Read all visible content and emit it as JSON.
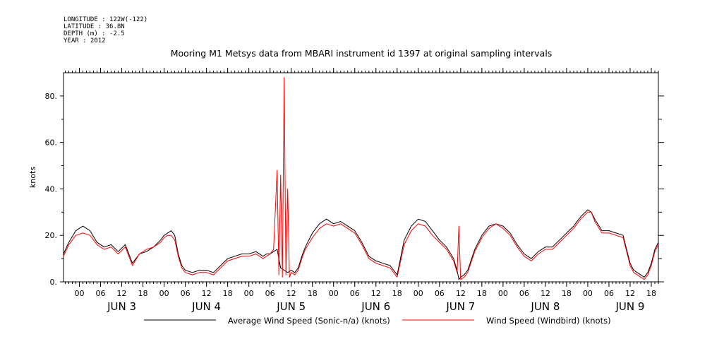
{
  "header": {
    "longitude": "LONGITUDE : 122W(-122)",
    "latitude": "LATITUDE : 36.8N",
    "depth": "DEPTH (m) : -2.5",
    "year": "YEAR : 2012"
  },
  "chart_data": {
    "type": "line",
    "title": "Mooring M1 Metsys data from MBARI instrument id 1397 at original sampling intervals",
    "ylabel": "knots",
    "xlabel": "",
    "ylim": [
      0,
      90
    ],
    "yticks": [
      0,
      20,
      40,
      60,
      80
    ],
    "ytick_labels": [
      "0.",
      "20.",
      "40.",
      "60.",
      "80."
    ],
    "xlim_hours": [
      -4.5,
      164
    ],
    "hour_ticks": [
      {
        "h": 0,
        "label": "00"
      },
      {
        "h": 6,
        "label": "06"
      },
      {
        "h": 12,
        "label": "12"
      },
      {
        "h": 18,
        "label": "18"
      },
      {
        "h": 24,
        "label": "00"
      },
      {
        "h": 30,
        "label": "06"
      },
      {
        "h": 36,
        "label": "12"
      },
      {
        "h": 42,
        "label": "18"
      },
      {
        "h": 48,
        "label": "00"
      },
      {
        "h": 54,
        "label": "06"
      },
      {
        "h": 60,
        "label": "12"
      },
      {
        "h": 66,
        "label": "18"
      },
      {
        "h": 72,
        "label": "00"
      },
      {
        "h": 78,
        "label": "06"
      },
      {
        "h": 84,
        "label": "12"
      },
      {
        "h": 90,
        "label": "18"
      },
      {
        "h": 96,
        "label": "00"
      },
      {
        "h": 102,
        "label": "06"
      },
      {
        "h": 108,
        "label": "12"
      },
      {
        "h": 114,
        "label": "18"
      },
      {
        "h": 120,
        "label": "00"
      },
      {
        "h": 126,
        "label": "06"
      },
      {
        "h": 132,
        "label": "12"
      },
      {
        "h": 138,
        "label": "18"
      },
      {
        "h": 144,
        "label": "00"
      },
      {
        "h": 150,
        "label": "06"
      },
      {
        "h": 156,
        "label": "12"
      },
      {
        "h": 162,
        "label": "18"
      }
    ],
    "day_labels": [
      {
        "h": 12,
        "label": "JUN  3"
      },
      {
        "h": 36,
        "label": "JUN  4"
      },
      {
        "h": 60,
        "label": "JUN  5"
      },
      {
        "h": 84,
        "label": "JUN  6"
      },
      {
        "h": 108,
        "label": "JUN  7"
      },
      {
        "h": 132,
        "label": "JUN  8"
      },
      {
        "h": 156,
        "label": "JUN  9"
      }
    ],
    "series": [
      {
        "name": "Average Wind Speed (Sonic-n/a) (knots)",
        "color": "#000000",
        "x": [
          -4.5,
          -3,
          -1,
          1,
          3,
          5,
          7,
          9,
          11,
          13,
          15,
          17,
          19,
          21,
          23,
          24,
          25,
          26,
          27,
          28,
          29,
          30,
          32,
          34,
          36,
          38,
          40,
          42,
          44,
          46,
          48,
          50,
          52,
          53,
          54,
          55,
          56,
          57,
          58,
          59,
          60,
          61,
          62,
          63,
          64,
          66,
          68,
          70,
          72,
          74,
          76,
          78,
          80,
          82,
          84,
          86,
          88,
          90,
          92,
          94,
          96,
          98,
          100,
          102,
          104,
          106,
          107,
          107.5,
          108,
          109,
          110,
          112,
          114,
          116,
          118,
          120,
          122,
          124,
          126,
          128,
          130,
          132,
          134,
          136,
          138,
          140,
          142,
          144,
          145,
          146,
          148,
          150,
          152,
          154,
          156,
          157,
          158,
          159,
          160,
          161,
          162,
          163,
          164
        ],
        "y": [
          12,
          17,
          22,
          24,
          22,
          17,
          15,
          16,
          13,
          16,
          8,
          12,
          13,
          15,
          18,
          20,
          21,
          22,
          20,
          12,
          7,
          5,
          4,
          5,
          5,
          4,
          7,
          10,
          11,
          12,
          12,
          13,
          11,
          12,
          12,
          13,
          14,
          6,
          5,
          4,
          5,
          4,
          6,
          11,
          15,
          21,
          25,
          27,
          25,
          26,
          24,
          22,
          17,
          11,
          9,
          8,
          7,
          3,
          18,
          24,
          27,
          26,
          22,
          18,
          15,
          10,
          5,
          1,
          2,
          3,
          5,
          14,
          20,
          24,
          25,
          24,
          21,
          16,
          12,
          10,
          13,
          15,
          15,
          18,
          21,
          24,
          28,
          31,
          30,
          27,
          22,
          22,
          21,
          20,
          8,
          5,
          4,
          3,
          2,
          4,
          8,
          14,
          17
        ]
      },
      {
        "name": "Wind Speed (Windbird) (knots)",
        "color": "#ff0000",
        "x": [
          -4.5,
          -3,
          -1,
          1,
          3,
          5,
          7,
          9,
          11,
          13,
          15,
          17,
          19,
          21,
          23,
          24,
          25,
          26,
          27,
          28,
          29,
          30,
          32,
          34,
          36,
          38,
          40,
          42,
          44,
          46,
          48,
          50,
          52,
          53,
          54,
          55,
          56,
          56.5,
          57,
          57.5,
          58,
          58.5,
          59,
          59.5,
          60,
          61,
          62,
          63,
          64,
          66,
          68,
          70,
          72,
          74,
          76,
          78,
          80,
          82,
          84,
          86,
          88,
          90,
          92,
          94,
          96,
          98,
          100,
          102,
          104,
          106,
          107,
          107.5,
          108,
          109,
          110,
          112,
          114,
          116,
          118,
          120,
          122,
          124,
          126,
          128,
          130,
          132,
          134,
          136,
          138,
          140,
          142,
          144,
          145,
          146,
          148,
          150,
          152,
          154,
          156,
          157,
          158,
          159,
          160,
          161,
          162,
          163,
          164
        ],
        "y": [
          11,
          16,
          20,
          21,
          20,
          16,
          14,
          15,
          12,
          15,
          7,
          12,
          14,
          15,
          17,
          19,
          20,
          20,
          18,
          11,
          6,
          4,
          3,
          4,
          4,
          3,
          6,
          9,
          10,
          11,
          11,
          12,
          10,
          11,
          12,
          14,
          48,
          3,
          46,
          2,
          88,
          3,
          40,
          2,
          4,
          3,
          5,
          10,
          14,
          19,
          23,
          25,
          24,
          25,
          23,
          21,
          16,
          10,
          8,
          7,
          6,
          2,
          16,
          22,
          25,
          24,
          20,
          17,
          14,
          9,
          4,
          24,
          1,
          2,
          4,
          13,
          19,
          23,
          25,
          23,
          20,
          15,
          11,
          9,
          12,
          14,
          14,
          17,
          20,
          23,
          27,
          30,
          30,
          26,
          21,
          21,
          20,
          19,
          7,
          4,
          3,
          2,
          1,
          3,
          7,
          13,
          16
        ]
      }
    ],
    "legend": "bottom"
  }
}
